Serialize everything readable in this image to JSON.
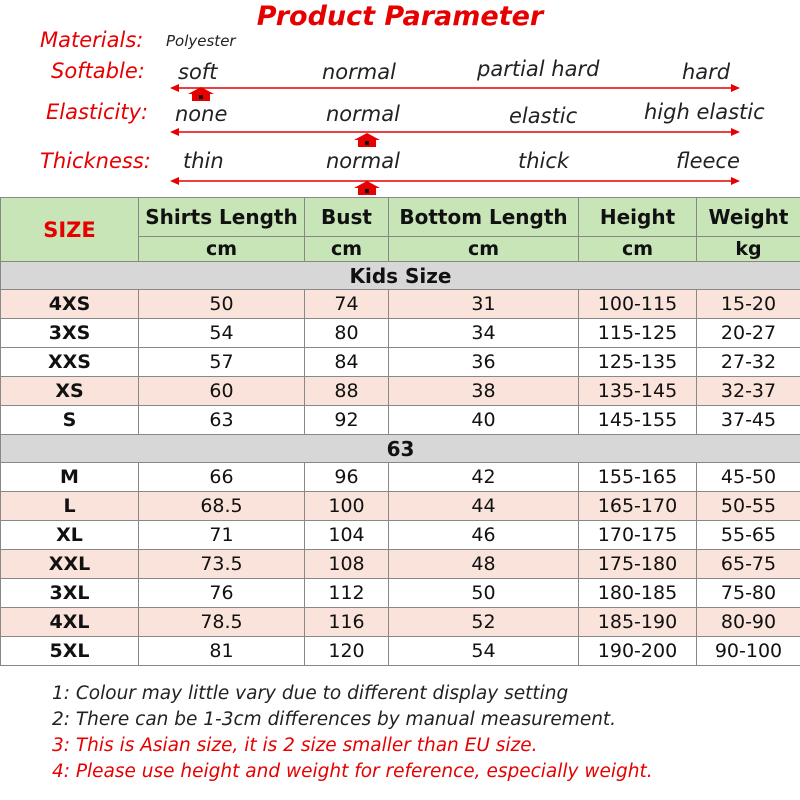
{
  "title": "Product Parameter",
  "parameters": {
    "materials": {
      "label": "Materials:",
      "value": "Polyester"
    },
    "softable": {
      "label": "Softable:",
      "options": [
        "soft",
        "normal",
        "partial hard",
        "hard"
      ],
      "selected": "soft"
    },
    "elasticity": {
      "label": "Elasticity:",
      "options": [
        "none",
        "normal",
        "elastic",
        "high elastic"
      ],
      "selected": "normal"
    },
    "thickness": {
      "label": "Thickness:",
      "options": [
        "thin",
        "normal",
        "thick",
        "fleece"
      ],
      "selected": "normal"
    }
  },
  "table": {
    "size_header": "SIZE",
    "columns": [
      "Shirts Length",
      "Bust",
      "Bottom Length",
      "Height",
      "Weight"
    ],
    "units": [
      "cm",
      "cm",
      "cm",
      "cm",
      "kg"
    ],
    "kids_section": "Kids Size",
    "kids_rows": [
      [
        "4XS",
        "50",
        "74",
        "31",
        "100-115",
        "15-20"
      ],
      [
        "3XS",
        "54",
        "80",
        "34",
        "115-125",
        "20-27"
      ],
      [
        "XXS",
        "57",
        "84",
        "36",
        "125-135",
        "27-32"
      ],
      [
        "XS",
        "60",
        "88",
        "38",
        "135-145",
        "32-37"
      ],
      [
        "S",
        "63",
        "92",
        "40",
        "145-155",
        "37-45"
      ]
    ],
    "adult_section": "63",
    "adult_rows": [
      [
        "M",
        "66",
        "96",
        "42",
        "155-165",
        "45-50"
      ],
      [
        "L",
        "68.5",
        "100",
        "44",
        "165-170",
        "50-55"
      ],
      [
        "XL",
        "71",
        "104",
        "46",
        "170-175",
        "55-65"
      ],
      [
        "XXL",
        "73.5",
        "108",
        "48",
        "175-180",
        "65-75"
      ],
      [
        "3XL",
        "76",
        "112",
        "50",
        "180-185",
        "75-80"
      ],
      [
        "4XL",
        "78.5",
        "116",
        "52",
        "185-190",
        "80-90"
      ],
      [
        "5XL",
        "81",
        "120",
        "54",
        "190-200",
        "90-100"
      ]
    ]
  },
  "notes": [
    "1: Colour may little vary due to different display setting",
    "2: There can be 1-3cm differences by manual measurement.",
    "3: This is Asian size, it is 2 size smaller than EU size.",
    "4: Please use height and weight for reference, especially weight."
  ],
  "colors": {
    "accent": "#e60000",
    "header_green": "#c7e5b7",
    "section_grey": "#d7d7d7",
    "row_pink": "#f9e3da"
  },
  "icons": {
    "scale_marker": "house-marker-icon",
    "scale_line": "double-arrow-icon"
  }
}
